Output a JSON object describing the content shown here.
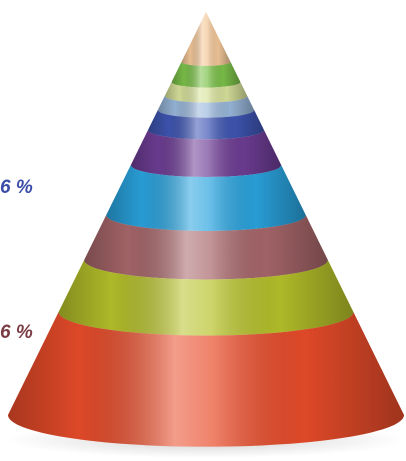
{
  "cone_bands": [
    {
      "name": "tip",
      "color": "#f4c89a"
    },
    {
      "name": "light-green",
      "color": "#7cc24a"
    },
    {
      "name": "pale-yellow-green",
      "color": "#d9e39c"
    },
    {
      "name": "light-blue",
      "color": "#9ab8dc"
    },
    {
      "name": "blue",
      "color": "#3f56b4"
    },
    {
      "name": "purple",
      "color": "#6e3d95"
    },
    {
      "name": "cyan",
      "color": "#2aa4df"
    },
    {
      "name": "mauve",
      "color": "#a8676b"
    },
    {
      "name": "olive-yellow",
      "color": "#b7c22a"
    },
    {
      "name": "red-orange",
      "color": "#e94c2a"
    }
  ],
  "labels": [
    {
      "text": "6 %",
      "color": "#3b4ea8"
    },
    {
      "text": "6 %",
      "color": "#7a3c44"
    }
  ]
}
